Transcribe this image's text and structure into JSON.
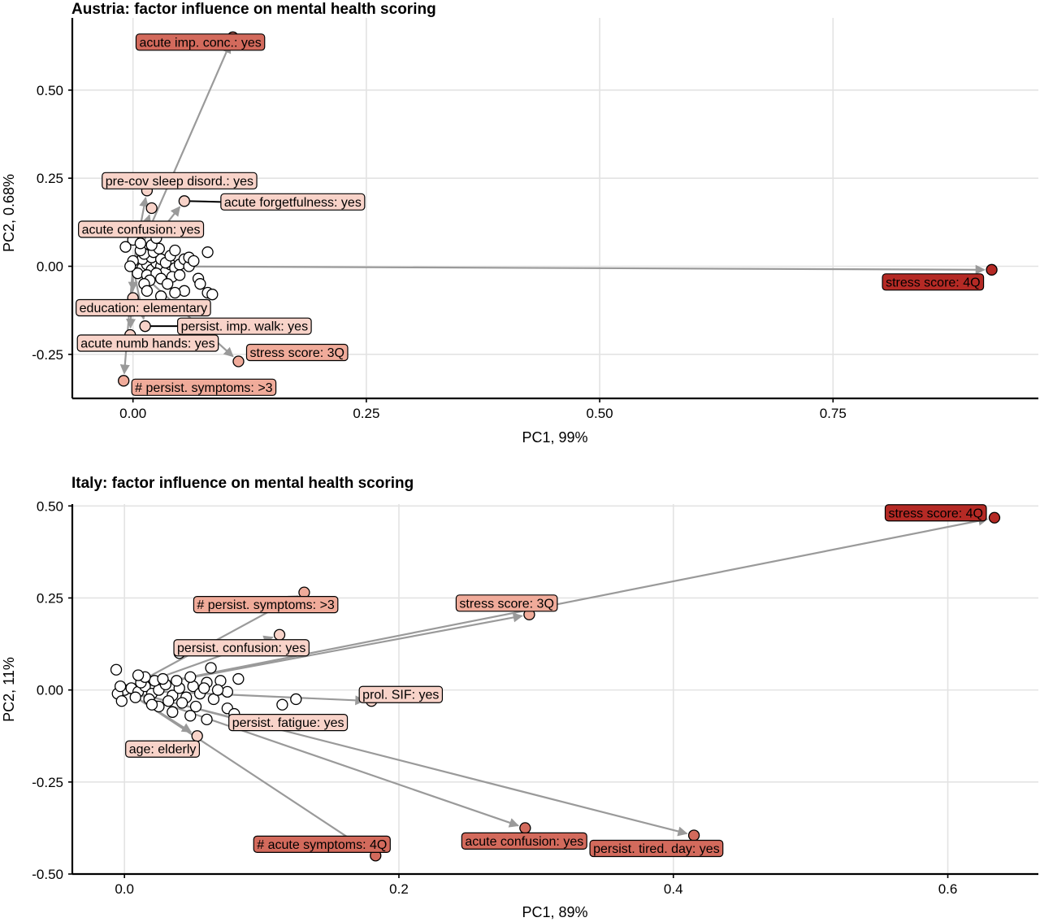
{
  "chart_data": [
    {
      "type": "scatter",
      "title": "Austria: factor influence on mental health scoring",
      "xlabel": "PC1, 99%",
      "ylabel": "PC2, 0.68%",
      "xlim": [
        -0.065,
        0.97
      ],
      "ylim": [
        -0.375,
        0.705
      ],
      "xticks": [
        0.0,
        0.25,
        0.5,
        0.75
      ],
      "xtick_labels": [
        "0.00",
        "0.25",
        "0.50",
        "0.75"
      ],
      "yticks": [
        -0.25,
        0.0,
        0.25,
        0.5
      ],
      "ytick_labels": [
        "-0.25",
        "0.00",
        "0.25",
        "0.50"
      ],
      "grid": true,
      "arrow_origin": [
        0.0,
        0.0
      ],
      "colors": {
        "strong": "#b52a25",
        "high": "#d36a5c",
        "medium": "#f0ab9a",
        "low": "#f8d3c9",
        "none": "#ffffff"
      },
      "labeled_points": [
        {
          "label": "stress score: 4Q",
          "x": 0.92,
          "y": -0.01,
          "color": "#b52a25",
          "arrow": true
        },
        {
          "label": "acute imp. conc.: yes",
          "x": 0.107,
          "y": 0.65,
          "color": "#d36a5c",
          "arrow": true
        },
        {
          "label": "pre-cov sleep disord.: yes",
          "x": 0.015,
          "y": 0.215,
          "color": "#f8d3c9",
          "arrow": true
        },
        {
          "label": "acute forgetfulness: yes",
          "x": 0.055,
          "y": 0.185,
          "color": "#f8d3c9",
          "arrow": true
        },
        {
          "label": "acute confusion: yes",
          "x": 0.02,
          "y": 0.165,
          "color": "#f8d3c9",
          "arrow": true
        },
        {
          "label": "education: elementary",
          "x": 0.0,
          "y": -0.09,
          "color": "#f8d3c9",
          "arrow": true
        },
        {
          "label": "persist. imp. walk: yes",
          "x": 0.013,
          "y": -0.17,
          "color": "#f8d3c9",
          "arrow": true
        },
        {
          "label": "acute numb hands: yes",
          "x": -0.003,
          "y": -0.195,
          "color": "#f8d3c9",
          "arrow": true
        },
        {
          "label": "stress score: 3Q",
          "x": 0.113,
          "y": -0.27,
          "color": "#f0ab9a",
          "arrow": true
        },
        {
          "label": "# persist. symptoms: >3",
          "x": -0.01,
          "y": -0.325,
          "color": "#f0ab9a",
          "arrow": true
        }
      ],
      "unlabeled_points": [
        {
          "x": 0.0,
          "y": 0.0
        },
        {
          "x": 0.005,
          "y": 0.01
        },
        {
          "x": 0.01,
          "y": -0.005
        },
        {
          "x": 0.015,
          "y": 0.005
        },
        {
          "x": 0.02,
          "y": -0.01
        },
        {
          "x": 0.025,
          "y": 0.01
        },
        {
          "x": 0.03,
          "y": 0.0
        },
        {
          "x": 0.035,
          "y": -0.015
        },
        {
          "x": 0.04,
          "y": 0.005
        },
        {
          "x": 0.045,
          "y": -0.005
        },
        {
          "x": 0.01,
          "y": 0.02
        },
        {
          "x": 0.02,
          "y": 0.025
        },
        {
          "x": 0.005,
          "y": -0.02
        },
        {
          "x": 0.015,
          "y": -0.025
        },
        {
          "x": 0.03,
          "y": 0.02
        },
        {
          "x": 0.035,
          "y": 0.01
        },
        {
          "x": 0.025,
          "y": -0.02
        },
        {
          "x": 0.0,
          "y": 0.015
        },
        {
          "x": -0.003,
          "y": 0.0
        },
        {
          "x": 0.012,
          "y": 0.035
        },
        {
          "x": 0.022,
          "y": 0.04
        },
        {
          "x": 0.04,
          "y": 0.03
        },
        {
          "x": 0.045,
          "y": 0.045
        },
        {
          "x": 0.03,
          "y": -0.035
        },
        {
          "x": 0.018,
          "y": -0.04
        },
        {
          "x": 0.05,
          "y": 0.005
        },
        {
          "x": 0.008,
          "y": 0.045
        },
        {
          "x": 0.042,
          "y": -0.03
        },
        {
          "x": 0.028,
          "y": 0.05
        },
        {
          "x": 0.037,
          "y": -0.05
        },
        {
          "x": 0.055,
          "y": 0.02
        },
        {
          "x": 0.05,
          "y": -0.025
        },
        {
          "x": 0.06,
          "y": 0.0
        },
        {
          "x": 0.012,
          "y": -0.05
        },
        {
          "x": 0.02,
          "y": 0.06
        },
        {
          "x": 0.0,
          "y": 0.075
        },
        {
          "x": -0.008,
          "y": 0.055
        },
        {
          "x": 0.08,
          "y": 0.04
        },
        {
          "x": 0.07,
          "y": -0.035
        },
        {
          "x": 0.072,
          "y": -0.05
        },
        {
          "x": 0.08,
          "y": -0.075
        },
        {
          "x": 0.085,
          "y": -0.08
        },
        {
          "x": 0.055,
          "y": -0.07
        },
        {
          "x": 0.03,
          "y": -0.085
        },
        {
          "x": 0.045,
          "y": -0.075
        },
        {
          "x": 0.015,
          "y": -0.07
        },
        {
          "x": 0.06,
          "y": 0.025
        },
        {
          "x": 0.065,
          "y": 0.015
        },
        {
          "x": 0.008,
          "y": 0.065
        },
        {
          "x": 0.025,
          "y": 0.08
        }
      ]
    },
    {
      "type": "scatter",
      "title": "Italy: factor influence on mental health scoring",
      "xlabel": "PC1, 89%",
      "ylabel": "PC2, 11%",
      "xlim": [
        -0.038,
        0.666
      ],
      "ylim": [
        -0.5,
        0.505
      ],
      "xticks": [
        0.0,
        0.2,
        0.4,
        0.6
      ],
      "xtick_labels": [
        "0.0",
        "0.2",
        "0.4",
        "0.6"
      ],
      "yticks": [
        -0.5,
        -0.25,
        0.0,
        0.25,
        0.5
      ],
      "ytick_labels": [
        "-0.50",
        "-0.25",
        "0.00",
        "0.25",
        "0.50"
      ],
      "grid": true,
      "arrow_origin": [
        0.0,
        0.0
      ],
      "colors": {
        "strong": "#b52a25",
        "high": "#d36a5c",
        "medium": "#f0ab9a",
        "low": "#f8d3c9",
        "none": "#ffffff"
      },
      "labeled_points": [
        {
          "label": "stress score: 4Q",
          "x": 0.634,
          "y": 0.468,
          "color": "#b52a25",
          "arrow": true
        },
        {
          "label": "stress score: 3Q",
          "x": 0.295,
          "y": 0.205,
          "color": "#f0ab9a",
          "arrow": true
        },
        {
          "label": "# persist. symptoms: >3",
          "x": 0.131,
          "y": 0.265,
          "color": "#f0ab9a",
          "arrow": true
        },
        {
          "label": "persist. confusion: yes",
          "x": 0.113,
          "y": 0.15,
          "color": "#f8d3c9",
          "arrow": true
        },
        {
          "label": "prol. SIF: yes",
          "x": 0.18,
          "y": -0.03,
          "color": "#f8d3c9",
          "arrow": true
        },
        {
          "label": "persist. fatigue: yes",
          "x": 0.098,
          "y": -0.095,
          "color": "#f8d3c9",
          "arrow": true
        },
        {
          "label": "age: elderly",
          "x": 0.053,
          "y": -0.125,
          "color": "#f8d3c9",
          "arrow": true
        },
        {
          "label": "# acute symptoms: 4Q",
          "x": 0.183,
          "y": -0.45,
          "color": "#d36a5c",
          "arrow": true
        },
        {
          "label": "acute confusion: yes",
          "x": 0.292,
          "y": -0.375,
          "color": "#d36a5c",
          "arrow": true
        },
        {
          "label": "persist. tired. day: yes",
          "x": 0.415,
          "y": -0.395,
          "color": "#d36a5c",
          "arrow": true
        }
      ],
      "unlabeled_points": [
        {
          "x": 0.0,
          "y": 0.0
        },
        {
          "x": 0.005,
          "y": 0.005
        },
        {
          "x": 0.01,
          "y": -0.005
        },
        {
          "x": 0.015,
          "y": 0.01
        },
        {
          "x": 0.02,
          "y": -0.01
        },
        {
          "x": 0.025,
          "y": 0.0
        },
        {
          "x": 0.03,
          "y": 0.015
        },
        {
          "x": 0.035,
          "y": -0.015
        },
        {
          "x": 0.04,
          "y": 0.005
        },
        {
          "x": 0.045,
          "y": -0.02
        },
        {
          "x": 0.012,
          "y": 0.02
        },
        {
          "x": 0.022,
          "y": 0.025
        },
        {
          "x": 0.008,
          "y": -0.02
        },
        {
          "x": 0.018,
          "y": -0.025
        },
        {
          "x": 0.028,
          "y": 0.03
        },
        {
          "x": 0.032,
          "y": -0.03
        },
        {
          "x": 0.038,
          "y": 0.025
        },
        {
          "x": 0.042,
          "y": -0.035
        },
        {
          "x": 0.05,
          "y": 0.01
        },
        {
          "x": 0.055,
          "y": -0.01
        },
        {
          "x": 0.06,
          "y": 0.02
        },
        {
          "x": 0.065,
          "y": -0.025
        },
        {
          "x": 0.048,
          "y": 0.035
        },
        {
          "x": 0.052,
          "y": -0.045
        },
        {
          "x": 0.035,
          "y": -0.06
        },
        {
          "x": 0.025,
          "y": -0.045
        },
        {
          "x": -0.005,
          "y": -0.01
        },
        {
          "x": -0.003,
          "y": 0.01
        },
        {
          "x": -0.006,
          "y": 0.055
        },
        {
          "x": 0.07,
          "y": 0.025
        },
        {
          "x": 0.075,
          "y": -0.005
        },
        {
          "x": 0.063,
          "y": 0.06
        },
        {
          "x": 0.04,
          "y": 0.1
        },
        {
          "x": 0.075,
          "y": -0.05
        },
        {
          "x": 0.08,
          "y": -0.065
        },
        {
          "x": 0.06,
          "y": -0.08
        },
        {
          "x": 0.048,
          "y": -0.07
        },
        {
          "x": 0.115,
          "y": -0.04
        },
        {
          "x": 0.125,
          "y": -0.025
        },
        {
          "x": 0.083,
          "y": 0.03
        },
        {
          "x": 0.015,
          "y": 0.035
        },
        {
          "x": 0.02,
          "y": -0.04
        },
        {
          "x": 0.058,
          "y": 0.005
        },
        {
          "x": 0.068,
          "y": 0.0
        },
        {
          "x": -0.002,
          "y": -0.03
        },
        {
          "x": 0.01,
          "y": 0.04
        }
      ]
    }
  ]
}
